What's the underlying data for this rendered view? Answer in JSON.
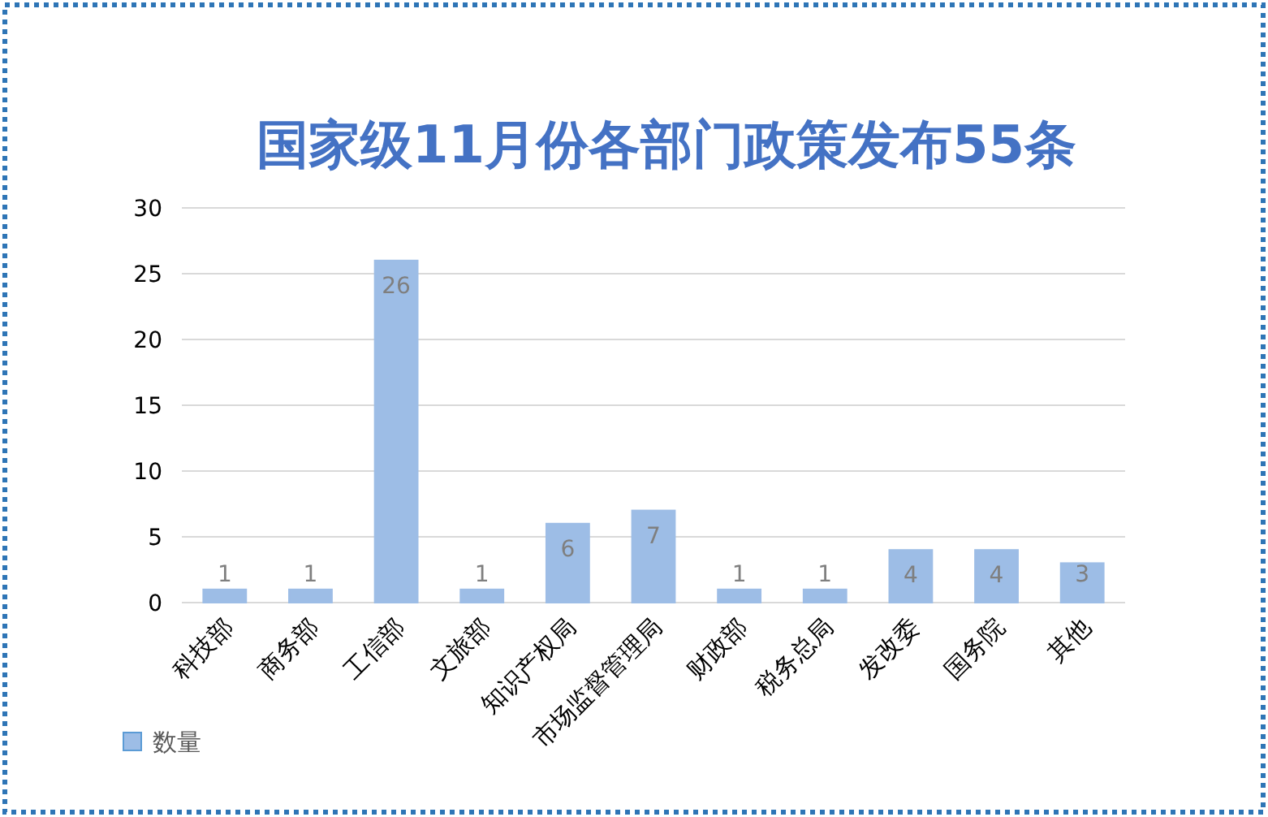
{
  "chart_data": {
    "type": "bar",
    "title": "国家级11月份各部门政策发布55条",
    "categories": [
      "科技部",
      "商务部",
      "工信部",
      "文旅部",
      "知识产权局",
      "市场监督管理局",
      "财政部",
      "税务总局",
      "发改委",
      "国务院",
      "其他"
    ],
    "series": [
      {
        "name": "数量",
        "color": "#9dbde6",
        "values": [
          1,
          1,
          26,
          1,
          6,
          7,
          1,
          1,
          4,
          4,
          3
        ]
      }
    ],
    "ylim": [
      0,
      30
    ],
    "yticks": [
      0,
      5,
      10,
      15,
      20,
      25,
      30
    ],
    "grid": "y",
    "legend": "bottom left",
    "data_labels": true
  }
}
